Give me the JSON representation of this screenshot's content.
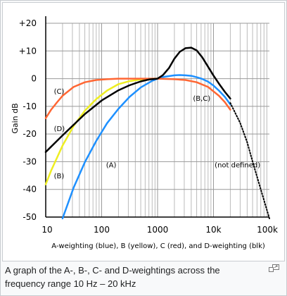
{
  "caption": "A graph of the A-, B-, C- and D-weightings across the frequency range 10 Hz – 20 kHz",
  "magnify_icon": "magnify-clip-icon",
  "chart_data": {
    "type": "line",
    "xscale": "log",
    "xlim": [
      10,
      100000
    ],
    "ylim": [
      -50,
      20
    ],
    "xlabel": "A-weighting (blue), B (yellow), C (red), and D-weighting (blk)",
    "ylabel": "Gain dB",
    "x_ticks": [
      10,
      100,
      1000,
      10000,
      100000
    ],
    "x_tick_labels": [
      "10",
      "100",
      "1000",
      "10k",
      "100k"
    ],
    "y_ticks": [
      20,
      10,
      0,
      -10,
      -20,
      -30,
      -40,
      -50
    ],
    "y_tick_labels": [
      "+20",
      "+10",
      "0",
      "-10",
      "-20",
      "-30",
      "-40",
      "-50"
    ],
    "grid": true,
    "series": [
      {
        "name": "(A)",
        "color": "#1e90ff",
        "style": "solid",
        "label_at": [
          120,
          -32
        ],
        "points": [
          [
            20,
            -50.5
          ],
          [
            31.5,
            -39.4
          ],
          [
            50,
            -30.2
          ],
          [
            80,
            -22.5
          ],
          [
            125,
            -16.1
          ],
          [
            200,
            -10.9
          ],
          [
            315,
            -6.6
          ],
          [
            500,
            -3.2
          ],
          [
            800,
            -0.8
          ],
          [
            1000,
            0
          ],
          [
            1250,
            0.6
          ],
          [
            2000,
            1.2
          ],
          [
            2500,
            1.3
          ],
          [
            3150,
            1.2
          ],
          [
            4000,
            1.0
          ],
          [
            5000,
            0.5
          ],
          [
            6300,
            -0.1
          ],
          [
            8000,
            -1.1
          ],
          [
            10000,
            -2.5
          ],
          [
            12500,
            -4.3
          ],
          [
            16000,
            -6.6
          ],
          [
            20000,
            -9.3
          ]
        ]
      },
      {
        "name": "(B)",
        "color": "#eeee22",
        "style": "solid",
        "label_at": [
          14,
          -36
        ],
        "points": [
          [
            10,
            -38.2
          ],
          [
            12.5,
            -33.2
          ],
          [
            16,
            -28.5
          ],
          [
            20,
            -24.2
          ],
          [
            31.5,
            -17.1
          ],
          [
            50,
            -11.6
          ],
          [
            80,
            -7.4
          ],
          [
            125,
            -4.3
          ],
          [
            200,
            -2.0
          ],
          [
            315,
            -0.9
          ],
          [
            500,
            -0.3
          ],
          [
            800,
            0
          ],
          [
            1000,
            0
          ]
        ]
      },
      {
        "name": "(C)",
        "color": "#ff6633",
        "style": "solid",
        "label_at": [
          14,
          -5.5
        ],
        "points": [
          [
            10,
            -14.3
          ],
          [
            12.5,
            -11.2
          ],
          [
            16,
            -8.5
          ],
          [
            20,
            -6.2
          ],
          [
            31.5,
            -3.0
          ],
          [
            50,
            -1.3
          ],
          [
            80,
            -0.5
          ],
          [
            125,
            -0.2
          ],
          [
            200,
            0
          ],
          [
            500,
            0
          ],
          [
            1000,
            0
          ],
          [
            2000,
            -0.2
          ],
          [
            3150,
            -0.5
          ],
          [
            5000,
            -1.3
          ],
          [
            8000,
            -3.0
          ],
          [
            12500,
            -6.2
          ],
          [
            16000,
            -8.5
          ],
          [
            20000,
            -11.2
          ]
        ]
      },
      {
        "name": "(D)",
        "color": "#000000",
        "style": "solid",
        "label_at": [
          14,
          -19
        ],
        "points": [
          [
            10,
            -26.5
          ],
          [
            20,
            -20.5
          ],
          [
            50,
            -12.8
          ],
          [
            100,
            -7.9
          ],
          [
            200,
            -4.2
          ],
          [
            315,
            -2.4
          ],
          [
            500,
            -1.0
          ],
          [
            700,
            -0.3
          ],
          [
            1000,
            0
          ],
          [
            1250,
            1.3
          ],
          [
            1600,
            3.8
          ],
          [
            2000,
            7.2
          ],
          [
            2500,
            9.7
          ],
          [
            3150,
            11.0
          ],
          [
            4000,
            11.2
          ],
          [
            5000,
            10.2
          ],
          [
            6300,
            7.7
          ],
          [
            8000,
            4.3
          ],
          [
            10000,
            1.1
          ],
          [
            12500,
            -1.8
          ],
          [
            16000,
            -4.8
          ],
          [
            20000,
            -7.2
          ]
        ]
      },
      {
        "name": "(not defined)",
        "color": "#000000",
        "style": "dotted",
        "label_at": [
          10500,
          -32
        ],
        "points": [
          [
            20000,
            -8.8
          ],
          [
            30000,
            -16
          ],
          [
            40000,
            -23
          ],
          [
            50000,
            -30
          ],
          [
            70000,
            -40
          ],
          [
            100000,
            -50.5
          ]
        ]
      }
    ],
    "annotations": [
      {
        "text": "(B,C)",
        "x": 4300,
        "y": -8
      }
    ]
  }
}
